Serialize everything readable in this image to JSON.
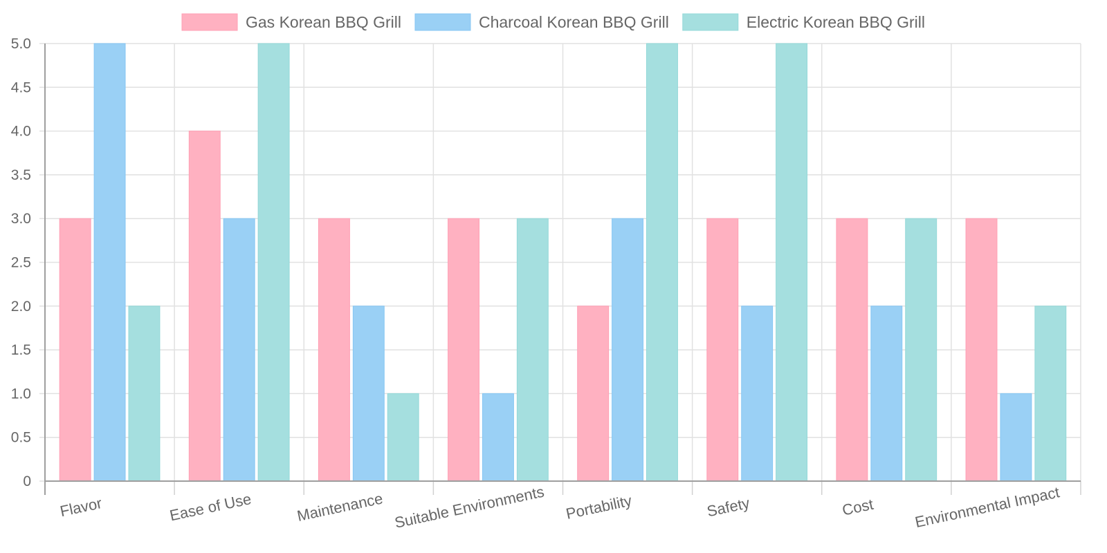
{
  "chart_data": {
    "type": "bar",
    "categories": [
      "Flavor",
      "Ease of Use",
      "Maintenance",
      "Suitable Environments",
      "Portability",
      "Safety",
      "Cost",
      "Environmental Impact"
    ],
    "series": [
      {
        "name": "Gas Korean BBQ Grill",
        "values": [
          3,
          4,
          3,
          3,
          2,
          3,
          3,
          3
        ],
        "color": "#ffb1c1",
        "border": "#ff9fb4"
      },
      {
        "name": "Charcoal Korean BBQ Grill",
        "values": [
          5,
          3,
          2,
          1,
          3,
          2,
          2,
          1
        ],
        "color": "#9ad0f5",
        "border": "#86c6f3"
      },
      {
        "name": "Electric Korean BBQ Grill",
        "values": [
          2,
          5,
          1,
          3,
          5,
          5,
          3,
          2
        ],
        "color": "#a5dfdf",
        "border": "#93d8d8"
      }
    ],
    "ylim": [
      0,
      5
    ],
    "yticks": [
      "0",
      "0.5",
      "1.0",
      "1.5",
      "2.0",
      "2.5",
      "3.0",
      "3.5",
      "4.0",
      "4.5",
      "5.0"
    ],
    "grid": true,
    "legend_position": "top"
  }
}
